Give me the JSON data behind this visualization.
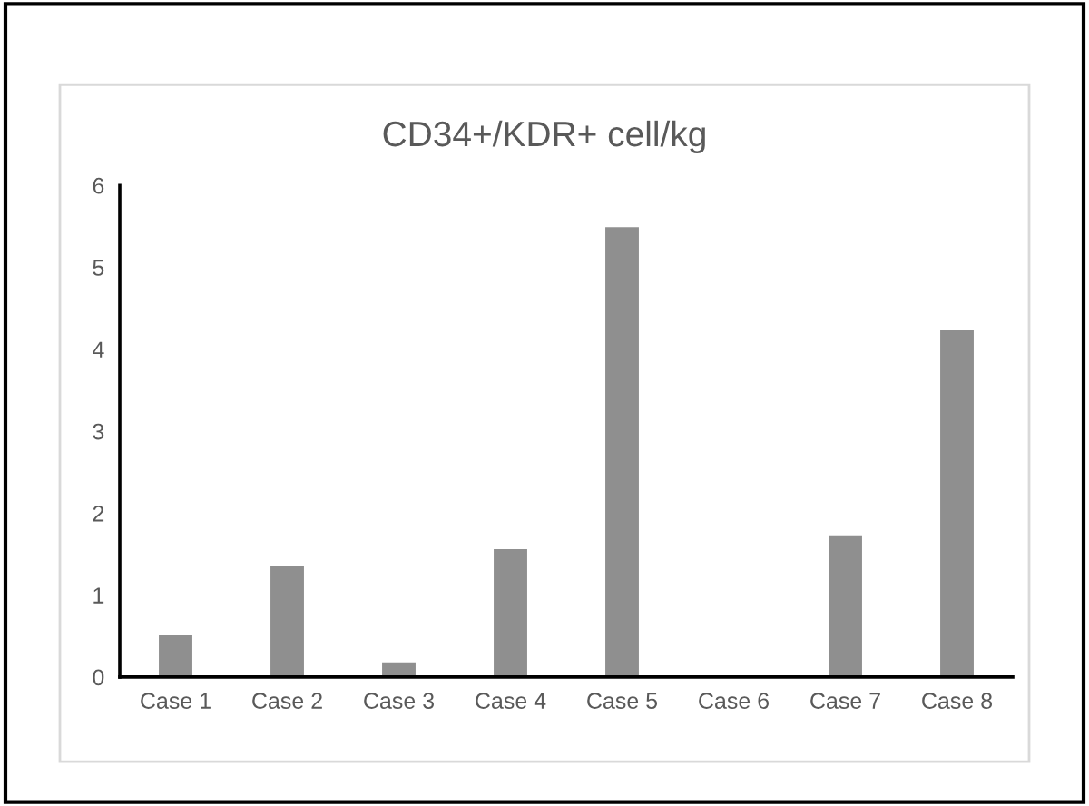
{
  "chart_data": {
    "type": "bar",
    "title": "CD34+/KDR+ cell/kg",
    "categories": [
      "Case 1",
      "Case 2",
      "Case 3",
      "Case 4",
      "Case 5",
      "Case 6",
      "Case 7",
      "Case 8"
    ],
    "values": [
      0.51,
      1.35,
      0.18,
      1.56,
      5.49,
      0,
      1.73,
      4.23
    ],
    "color": "#8f8f8f",
    "ylim": [
      0,
      6
    ],
    "yticks": [
      0,
      1,
      2,
      3,
      4,
      5,
      6
    ],
    "grid": false,
    "legend": false
  }
}
